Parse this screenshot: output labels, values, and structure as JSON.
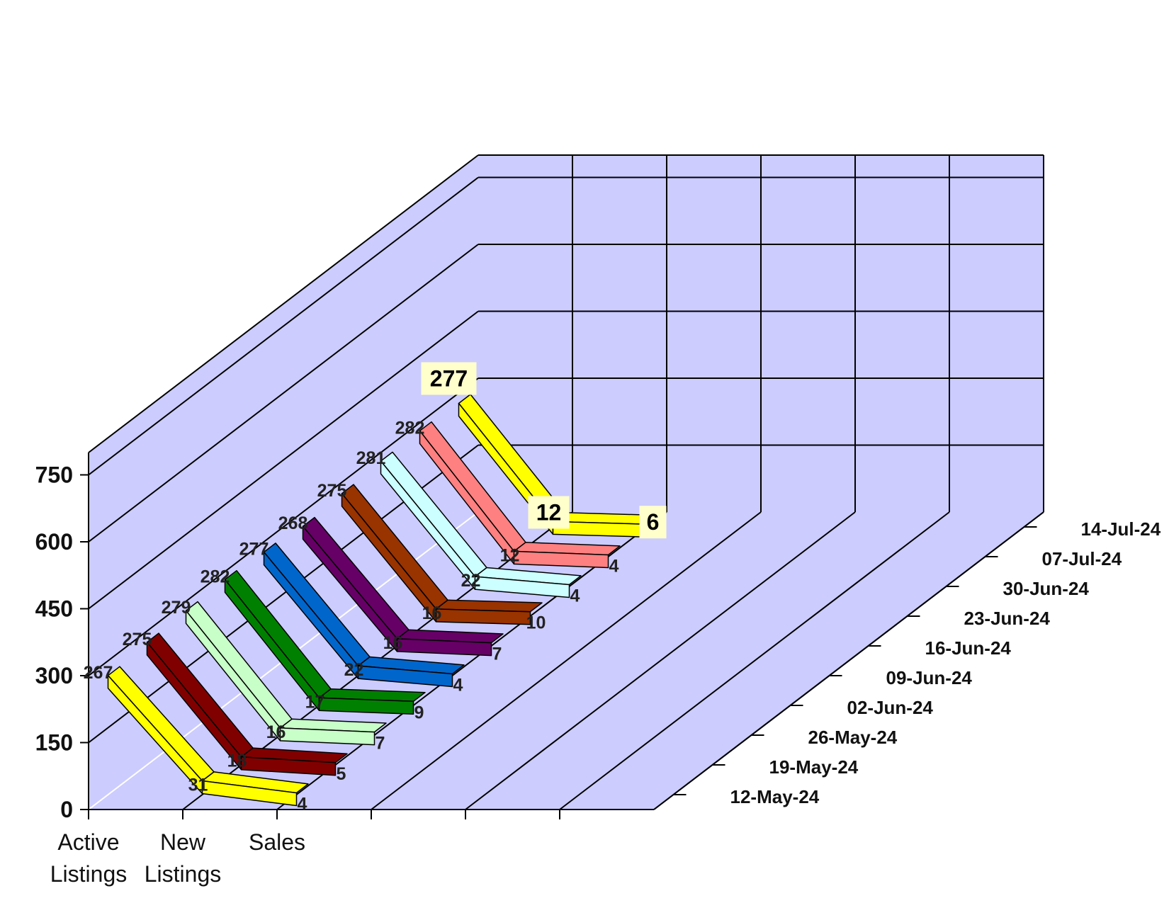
{
  "chart_data": {
    "type": "line",
    "variant": "3d-ribbon",
    "title": "",
    "categories": [
      "Active Listings",
      "New Listings",
      "Sales"
    ],
    "y_ticks": [
      0,
      150,
      300,
      450,
      600,
      750
    ],
    "ylim": [
      0,
      750
    ],
    "series": [
      {
        "name": "12-May-24",
        "values": [
          267,
          31,
          4
        ],
        "color": "#ffff00"
      },
      {
        "name": "19-May-24",
        "values": [
          275,
          18,
          5
        ],
        "color": "#800000"
      },
      {
        "name": "26-May-24",
        "values": [
          279,
          16,
          7
        ],
        "color": "#c8ffc8"
      },
      {
        "name": "02-Jun-24",
        "values": [
          282,
          17,
          9
        ],
        "color": "#008000"
      },
      {
        "name": "09-Jun-24",
        "values": [
          277,
          22,
          4
        ],
        "color": "#0066cc"
      },
      {
        "name": "16-Jun-24",
        "values": [
          268,
          16,
          7
        ],
        "color": "#660066"
      },
      {
        "name": "23-Jun-24",
        "values": [
          275,
          16,
          10
        ],
        "color": "#993300"
      },
      {
        "name": "30-Jun-24",
        "values": [
          281,
          22,
          4
        ],
        "color": "#ccffff"
      },
      {
        "name": "07-Jul-24",
        "values": [
          282,
          12,
          4
        ],
        "color": "#ff8080"
      },
      {
        "name": "14-Jul-24",
        "values": [
          277,
          12,
          6
        ],
        "color": "#ffff00"
      }
    ],
    "highlight_series": "14-Jul-24",
    "grid": true,
    "wall_color": "#ccccff",
    "legend": "none"
  }
}
